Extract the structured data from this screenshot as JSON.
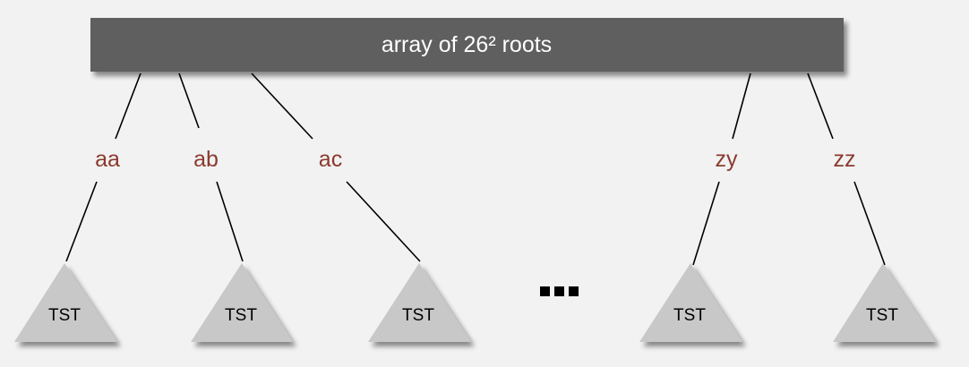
{
  "root_array": {
    "label": "array of 26² roots"
  },
  "edges": [
    {
      "label": "aa"
    },
    {
      "label": "ab"
    },
    {
      "label": "ac"
    },
    {
      "label": "zy"
    },
    {
      "label": "zz"
    }
  ],
  "subtries": [
    {
      "label": "TST"
    },
    {
      "label": "TST"
    },
    {
      "label": "TST"
    },
    {
      "label": "TST"
    },
    {
      "label": "TST"
    }
  ],
  "colors": {
    "root_array_fill": "#5f5f5f",
    "edge_label": "#8b3a2e",
    "triangle_fill": "#c8c8c8",
    "background": "#f2f2f2"
  }
}
